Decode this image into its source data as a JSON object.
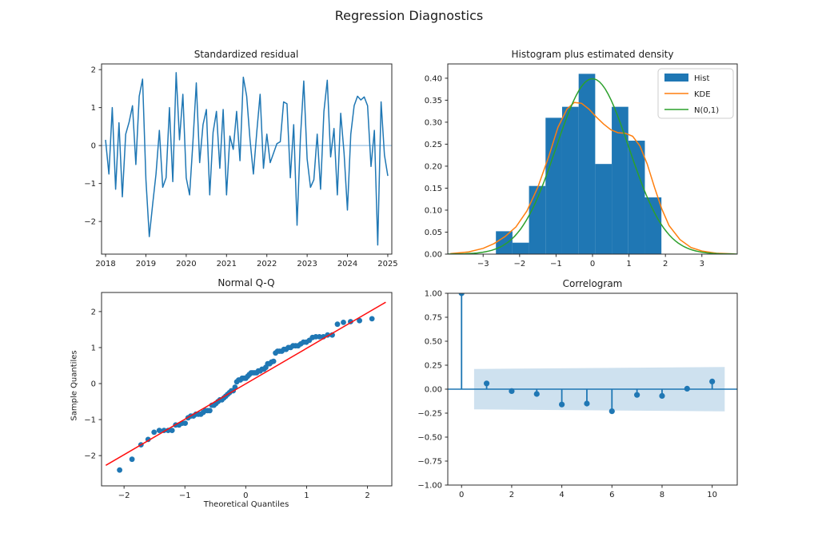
{
  "figure": {
    "title": "Regression Diagnostics"
  },
  "colors": {
    "series_blue": "#1f77b4",
    "zero_line_light": "#a8cbe8",
    "hist_fill": "#1f77b4",
    "kde_orange": "#ff7f0e",
    "normal_green": "#2ca02c",
    "qq_line_red": "#ff0f0f",
    "band_fill": "rgba(31,119,180,0.22)",
    "spine": "#2b2b2b",
    "tick_text": "#1c1c1c",
    "legend_border": "#cccccc"
  },
  "chart_data": [
    {
      "id": "res",
      "type": "line",
      "title": "Standardized residual",
      "x_start": 2018.0,
      "x_step": 0.0833333,
      "values": [
        0.15,
        -0.75,
        1.0,
        -1.15,
        0.6,
        -1.35,
        0.3,
        0.62,
        1.05,
        -0.5,
        1.3,
        1.75,
        -0.9,
        -2.4,
        -1.55,
        -0.75,
        0.4,
        -1.1,
        -0.85,
        1.0,
        -0.95,
        1.92,
        0.15,
        1.35,
        -0.85,
        -1.3,
        0.1,
        1.65,
        -0.45,
        0.55,
        0.95,
        -1.3,
        0.35,
        0.9,
        -0.6,
        0.95,
        -1.3,
        0.25,
        -0.1,
        0.9,
        -0.4,
        1.8,
        1.3,
        0.15,
        -0.75,
        0.35,
        1.35,
        -0.6,
        0.3,
        -0.45,
        -0.2,
        0.05,
        0.1,
        1.15,
        1.1,
        -0.85,
        0.55,
        -2.1,
        0.2,
        1.7,
        -0.35,
        -1.1,
        -0.9,
        0.3,
        -1.15,
        0.9,
        1.72,
        -0.3,
        0.45,
        -1.3,
        0.85,
        -0.2,
        -1.7,
        0.3,
        1.05,
        1.3,
        1.2,
        1.28,
        1.05,
        -0.55,
        0.4,
        -2.62,
        1.15,
        -0.25,
        -0.8
      ],
      "zero_line": 0,
      "xlim": [
        2017.9,
        2025.1
      ],
      "ylim": [
        -2.86,
        2.15
      ],
      "xticks": [
        2018,
        2019,
        2020,
        2021,
        2022,
        2023,
        2024,
        2025
      ],
      "xticklabels": [
        "2018",
        "2019",
        "2020",
        "2021",
        "2022",
        "2023",
        "2024",
        "2025"
      ],
      "yticks": [
        -2,
        -1,
        0,
        1,
        2
      ],
      "yticklabels": [
        "−2",
        "−1",
        "0",
        "1",
        "2"
      ]
    },
    {
      "id": "hist",
      "type": "histogram",
      "title": "Histogram plus estimated density",
      "bin_start": -2.65,
      "bin_width": 0.454,
      "densities": [
        0.052,
        0.026,
        0.155,
        0.31,
        0.335,
        0.41,
        0.205,
        0.335,
        0.258,
        0.129
      ],
      "kde_points": [
        [
          -3.9,
          0.001
        ],
        [
          -3.4,
          0.005
        ],
        [
          -3.0,
          0.013
        ],
        [
          -2.7,
          0.024
        ],
        [
          -2.4,
          0.04
        ],
        [
          -2.1,
          0.062
        ],
        [
          -1.8,
          0.098
        ],
        [
          -1.5,
          0.152
        ],
        [
          -1.2,
          0.222
        ],
        [
          -0.95,
          0.288
        ],
        [
          -0.7,
          0.33
        ],
        [
          -0.5,
          0.345
        ],
        [
          -0.3,
          0.343
        ],
        [
          -0.1,
          0.33
        ],
        [
          0.1,
          0.312
        ],
        [
          0.3,
          0.296
        ],
        [
          0.5,
          0.283
        ],
        [
          0.7,
          0.276
        ],
        [
          0.9,
          0.275
        ],
        [
          1.1,
          0.268
        ],
        [
          1.3,
          0.246
        ],
        [
          1.5,
          0.205
        ],
        [
          1.7,
          0.152
        ],
        [
          1.9,
          0.103
        ],
        [
          2.1,
          0.065
        ],
        [
          2.4,
          0.033
        ],
        [
          2.7,
          0.015
        ],
        [
          3.0,
          0.007
        ],
        [
          3.4,
          0.002
        ],
        [
          3.9,
          0.0005
        ]
      ],
      "normal_peak": 0.3989,
      "legend": [
        "Hist",
        "KDE",
        "N(0,1)"
      ],
      "xlim": [
        -3.97,
        3.97
      ],
      "ylim": [
        0,
        0.4325
      ],
      "xticks": [
        -3,
        -2,
        -1,
        0,
        1,
        2,
        3
      ],
      "xticklabels": [
        "−3",
        "−2",
        "−1",
        "0",
        "1",
        "2",
        "3"
      ],
      "yticks": [
        0,
        0.05,
        0.1,
        0.15,
        0.2,
        0.25,
        0.3,
        0.35,
        0.4
      ],
      "yticklabels": [
        "0.00",
        "0.05",
        "0.10",
        "0.15",
        "0.20",
        "0.25",
        "0.30",
        "0.35",
        "0.40"
      ]
    },
    {
      "id": "qq",
      "type": "qq",
      "title": "Normal Q-Q",
      "xlabel": "Theoretical Quantiles",
      "ylabel": "Sample Quantiles",
      "ref_line": {
        "x1": -2.3,
        "y1": -2.27,
        "x2": 2.3,
        "y2": 2.26
      },
      "xlim": [
        -2.37,
        2.4
      ],
      "ylim": [
        -2.84,
        2.53
      ],
      "xticks": [
        -2,
        -1,
        0,
        1,
        2
      ],
      "xticklabels": [
        "−2",
        "−1",
        "0",
        "1",
        "2"
      ],
      "yticks": [
        -2,
        -1,
        0,
        1,
        2
      ],
      "yticklabels": [
        "−2",
        "−1",
        "0",
        "1",
        "2"
      ]
    },
    {
      "id": "acf",
      "type": "stem",
      "title": "Correlogram",
      "lags": [
        0,
        1,
        2,
        3,
        4,
        5,
        6,
        7,
        8,
        9,
        10
      ],
      "acf": [
        1.0,
        0.06,
        -0.02,
        -0.05,
        -0.16,
        -0.15,
        -0.23,
        -0.06,
        -0.07,
        0.005,
        0.08
      ],
      "conf_band": {
        "x": [
          0.5,
          10.5
        ],
        "upper": [
          0.211,
          0.232
        ],
        "lower": [
          -0.211,
          -0.232
        ]
      },
      "xlim": [
        -0.55,
        11.0
      ],
      "ylim": [
        -1.0,
        1.0
      ],
      "xticks": [
        0,
        2,
        4,
        6,
        8,
        10
      ],
      "xticklabels": [
        "0",
        "2",
        "4",
        "6",
        "8",
        "10"
      ],
      "yticks": [
        -1,
        -0.75,
        -0.5,
        -0.25,
        0,
        0.25,
        0.5,
        0.75,
        1
      ],
      "yticklabels": [
        "−1.00",
        "−0.75",
        "−0.50",
        "−0.25",
        "0.00",
        "0.25",
        "0.50",
        "0.75",
        "1.00"
      ]
    }
  ]
}
